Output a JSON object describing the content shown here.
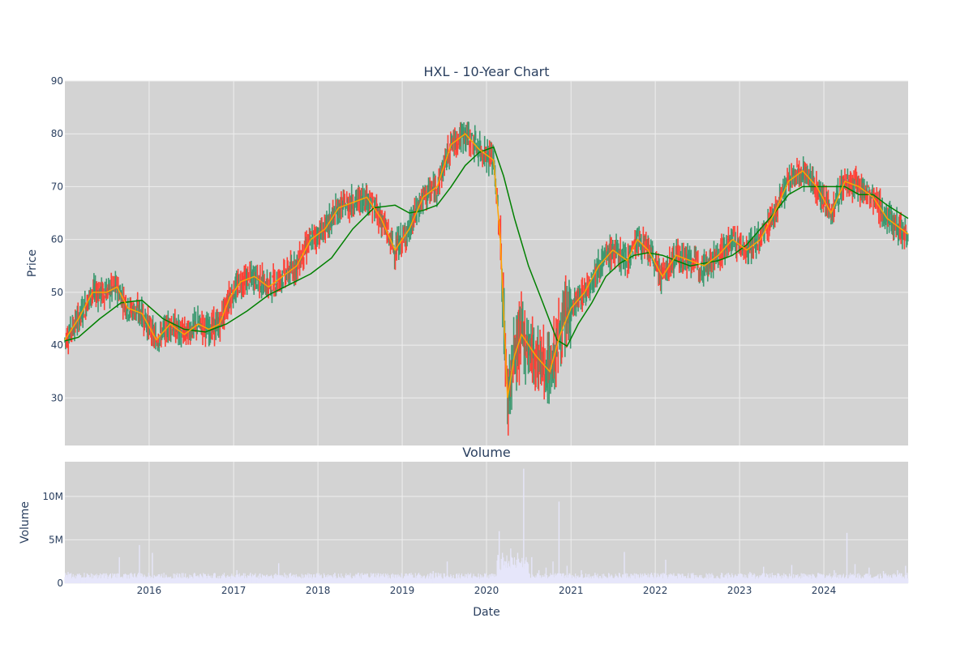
{
  "chart_data": [
    {
      "type": "candlestick",
      "title": "HXL - 10-Year Chart",
      "ylabel": "Price",
      "ylim": [
        21,
        90
      ],
      "yticks": [
        30,
        40,
        50,
        60,
        70,
        80,
        90
      ],
      "xlim": [
        "2015-01-01",
        "2024-12-31"
      ],
      "xticks": [
        "2016",
        "2017",
        "2018",
        "2019",
        "2020",
        "2021",
        "2022",
        "2023",
        "2024"
      ],
      "grid": true,
      "background": "#d3d3d3",
      "colors": {
        "up": "#3d9970",
        "down": "#ff4136",
        "ma_short": "#ffa500",
        "ma_long": "#008000"
      },
      "moving_average_short": {
        "x": [
          "2015-01-01",
          "2015-03-01",
          "2015-05-01",
          "2015-07-01",
          "2015-08-15",
          "2015-10-01",
          "2015-12-01",
          "2016-02-01",
          "2016-04-01",
          "2016-06-01",
          "2016-08-01",
          "2016-09-15",
          "2016-11-01",
          "2016-12-15",
          "2017-02-01",
          "2017-04-01",
          "2017-06-01",
          "2017-08-01",
          "2017-10-01",
          "2017-12-01",
          "2018-02-01",
          "2018-04-01",
          "2018-06-01",
          "2018-08-01",
          "2018-10-01",
          "2018-12-01",
          "2019-02-01",
          "2019-04-01",
          "2019-06-01",
          "2019-08-01",
          "2019-10-01",
          "2019-12-01",
          "2020-02-01",
          "2020-03-01",
          "2020-04-01",
          "2020-05-01",
          "2020-06-01",
          "2020-08-01",
          "2020-10-01",
          "2020-11-15",
          "2021-01-01",
          "2021-03-01",
          "2021-05-01",
          "2021-07-01",
          "2021-09-01",
          "2021-10-15",
          "2021-12-01",
          "2022-02-01",
          "2022-04-01",
          "2022-06-01",
          "2022-08-01",
          "2022-10-01",
          "2022-12-01",
          "2023-02-01",
          "2023-04-01",
          "2023-06-01",
          "2023-08-01",
          "2023-10-01",
          "2023-12-01",
          "2024-02-01",
          "2024-04-01",
          "2024-06-01",
          "2024-08-01",
          "2024-10-01",
          "2024-12-31"
        ],
        "y": [
          41,
          45,
          50,
          50,
          51,
          47,
          46,
          41,
          44,
          42,
          44,
          43,
          44,
          49,
          52,
          53,
          51,
          53,
          55,
          60,
          62,
          66,
          67,
          68,
          64,
          58,
          62,
          68,
          70,
          78,
          80,
          77,
          75,
          60,
          30,
          38,
          42,
          38,
          35,
          42,
          47,
          50,
          55,
          58,
          56,
          60,
          58,
          53,
          57,
          56,
          55,
          57,
          60,
          58,
          60,
          65,
          71,
          73,
          70,
          65,
          71,
          70,
          68,
          64,
          61
        ]
      },
      "moving_average_long": {
        "x": [
          "2015-01-01",
          "2015-03-01",
          "2015-06-01",
          "2015-09-01",
          "2015-12-01",
          "2016-03-01",
          "2016-06-01",
          "2016-09-01",
          "2016-12-01",
          "2017-03-01",
          "2017-06-01",
          "2017-09-01",
          "2017-12-01",
          "2018-03-01",
          "2018-06-01",
          "2018-09-01",
          "2018-12-01",
          "2019-02-01",
          "2019-04-01",
          "2019-06-01",
          "2019-08-01",
          "2019-10-01",
          "2019-12-01",
          "2020-02-01",
          "2020-03-15",
          "2020-05-01",
          "2020-07-01",
          "2020-09-01",
          "2020-11-01",
          "2020-12-15",
          "2021-02-01",
          "2021-04-01",
          "2021-06-01",
          "2021-08-01",
          "2021-10-01",
          "2021-12-01",
          "2022-02-01",
          "2022-04-01",
          "2022-06-01",
          "2022-08-01",
          "2022-10-01",
          "2022-12-01",
          "2023-02-01",
          "2023-04-01",
          "2023-06-01",
          "2023-08-01",
          "2023-10-01",
          "2023-12-01",
          "2024-02-01",
          "2024-04-01",
          "2024-06-01",
          "2024-08-01",
          "2024-10-01",
          "2024-12-31"
        ],
        "y": [
          40.8,
          41.5,
          45,
          48,
          48.5,
          45,
          43,
          42.5,
          44,
          46.5,
          49.5,
          51.5,
          53.5,
          56.5,
          62,
          66,
          66.5,
          65,
          65.5,
          66.5,
          70,
          74,
          76.5,
          77.5,
          72,
          64,
          55,
          48,
          41,
          39.8,
          44,
          48,
          53,
          55.5,
          57,
          57.5,
          57,
          56,
          55,
          55.5,
          56,
          57,
          59,
          62,
          65,
          68.5,
          70,
          70,
          70,
          70,
          68.5,
          68.5,
          66.5,
          64
        ]
      }
    },
    {
      "type": "bar",
      "title": "Volume",
      "xlabel": "Date",
      "ylabel": "Volume",
      "ylim": [
        0,
        14000000
      ],
      "yticks": [
        0,
        5000000,
        10000000
      ],
      "ytick_labels": [
        "0",
        "5M",
        "10M"
      ],
      "xticks": [
        "2016",
        "2017",
        "2018",
        "2019",
        "2020",
        "2021",
        "2022",
        "2023",
        "2024"
      ],
      "background": "#d3d3d3",
      "bar_color": "#e6e6fa",
      "x": [
        "2015-01-15",
        "2015-03-15",
        "2015-05-15",
        "2015-07-15",
        "2015-08-25",
        "2015-10-15",
        "2015-11-20",
        "2016-01-15",
        "2016-03-15",
        "2016-05-15",
        "2016-07-15",
        "2016-09-15",
        "2016-11-15",
        "2017-01-15",
        "2017-03-15",
        "2017-05-15",
        "2017-07-15",
        "2017-09-15",
        "2017-11-15",
        "2018-01-15",
        "2018-03-15",
        "2018-05-15",
        "2018-07-15",
        "2018-09-15",
        "2018-11-15",
        "2019-01-15",
        "2019-03-15",
        "2019-05-15",
        "2019-07-15",
        "2019-09-15",
        "2019-11-15",
        "2020-01-15",
        "2020-02-25",
        "2020-03-10",
        "2020-03-25",
        "2020-04-15",
        "2020-05-15",
        "2020-06-10",
        "2020-07-15",
        "2020-08-15",
        "2020-09-15",
        "2020-10-15",
        "2020-11-10",
        "2020-12-15",
        "2021-02-15",
        "2021-04-15",
        "2021-06-15",
        "2021-08-20",
        "2021-10-15",
        "2021-12-15",
        "2022-02-15",
        "2022-04-15",
        "2022-06-15",
        "2022-08-15",
        "2022-10-15",
        "2022-12-15",
        "2023-02-15",
        "2023-04-15",
        "2023-06-15",
        "2023-08-15",
        "2023-10-15",
        "2023-12-15",
        "2024-02-15",
        "2024-04-10",
        "2024-05-15",
        "2024-07-15",
        "2024-09-15",
        "2024-11-15",
        "2024-12-20"
      ],
      "values": [
        1300000,
        600000,
        800000,
        700000,
        3000000,
        1200000,
        4400000,
        3500000,
        900000,
        700000,
        1200000,
        800000,
        600000,
        1500000,
        1200000,
        900000,
        2300000,
        900000,
        800000,
        1000000,
        1200000,
        800000,
        700000,
        900000,
        1000000,
        1100000,
        900000,
        1400000,
        2500000,
        900000,
        800000,
        1000000,
        6000000,
        3500000,
        2500000,
        4000000,
        3500000,
        13200000,
        3000000,
        1500000,
        1800000,
        2500000,
        9400000,
        2000000,
        1500000,
        1200000,
        1100000,
        3600000,
        1000000,
        1200000,
        2700000,
        1100000,
        900000,
        1000000,
        1200000,
        900000,
        1300000,
        1900000,
        1100000,
        2100000,
        1000000,
        1100000,
        1500000,
        5800000,
        2200000,
        1800000,
        1400000,
        1500000,
        2000000
      ]
    }
  ]
}
